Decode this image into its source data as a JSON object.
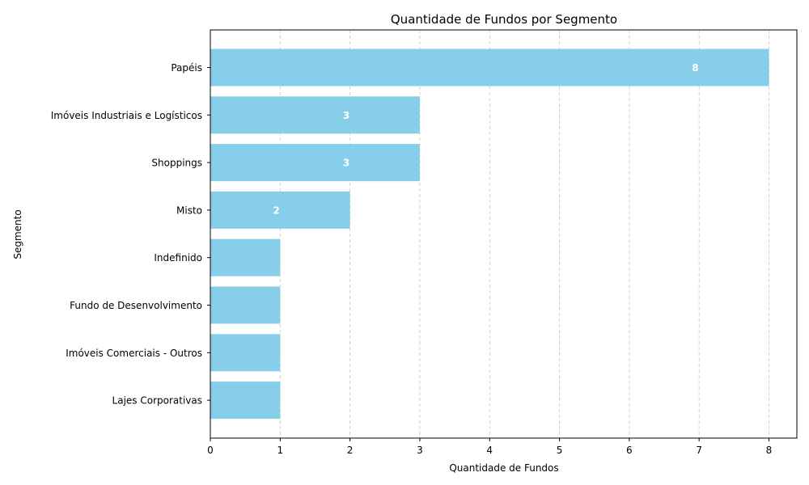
{
  "chart_data": {
    "type": "bar",
    "orientation": "horizontal",
    "title": "Quantidade de Fundos por Segmento",
    "xlabel": "Quantidade de Fundos",
    "ylabel": "Segmento",
    "categories": [
      "Papéis",
      "Imóveis Industriais e Logísticos",
      "Shoppings",
      "Misto",
      "Indefinido",
      "Fundo de Desenvolvimento",
      "Imóveis Comerciais - Outros",
      "Lajes Corporativas"
    ],
    "values": [
      8,
      3,
      3,
      2,
      1,
      1,
      1,
      1
    ],
    "data_labels": [
      "8",
      "3",
      "3",
      "2",
      "",
      "",
      "",
      ""
    ],
    "xlim": [
      0,
      8.4
    ],
    "xticks": [
      "0",
      "1",
      "2",
      "3",
      "4",
      "5",
      "6",
      "7",
      "8"
    ],
    "grid": "x-dashed",
    "bar_color": "#87ceeb",
    "grid_color": "#c8c8c8"
  }
}
